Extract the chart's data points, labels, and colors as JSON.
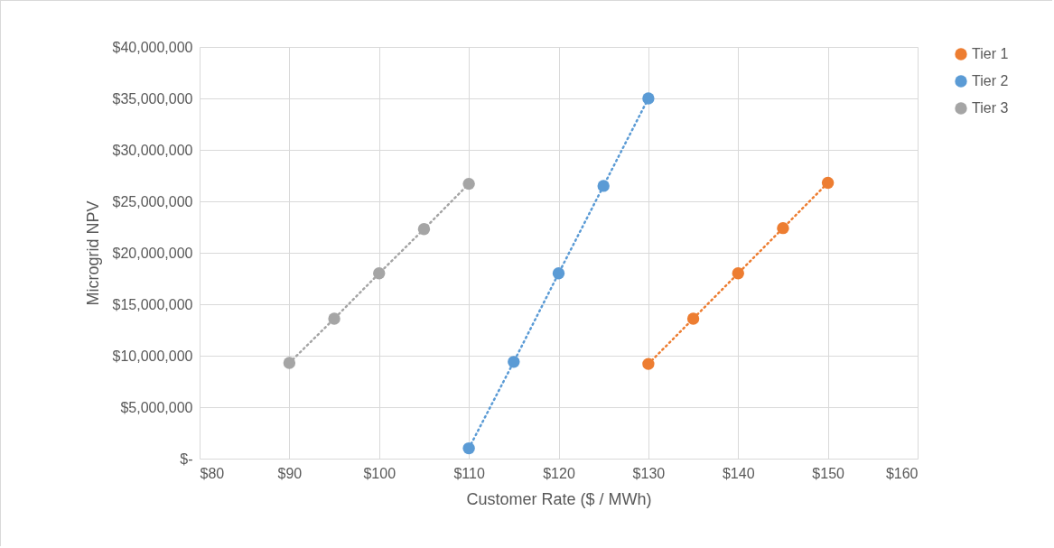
{
  "chart_data": {
    "type": "line",
    "xlabel": "Customer Rate ($ / MWh)",
    "ylabel": "Microgrid NPV",
    "xlim": [
      80,
      160
    ],
    "ylim": [
      0,
      40000000
    ],
    "xticks": [
      {
        "value": 80,
        "label": "$80"
      },
      {
        "value": 90,
        "label": "$90"
      },
      {
        "value": 100,
        "label": "$100"
      },
      {
        "value": 110,
        "label": "$110"
      },
      {
        "value": 120,
        "label": "$120"
      },
      {
        "value": 130,
        "label": "$130"
      },
      {
        "value": 140,
        "label": "$140"
      },
      {
        "value": 150,
        "label": "$150"
      },
      {
        "value": 160,
        "label": "$160"
      }
    ],
    "yticks": [
      {
        "value": 0,
        "label": "$-"
      },
      {
        "value": 5000000,
        "label": "$5,000,000"
      },
      {
        "value": 10000000,
        "label": "$10,000,000"
      },
      {
        "value": 15000000,
        "label": "$15,000,000"
      },
      {
        "value": 20000000,
        "label": "$20,000,000"
      },
      {
        "value": 25000000,
        "label": "$25,000,000"
      },
      {
        "value": 30000000,
        "label": "$30,000,000"
      },
      {
        "value": 35000000,
        "label": "$35,000,000"
      },
      {
        "value": 40000000,
        "label": "$40,000,000"
      }
    ],
    "series": [
      {
        "name": "Tier 1",
        "color": "#ed7d31",
        "x": [
          130,
          135,
          140,
          145,
          150
        ],
        "values": [
          9200000,
          13600000,
          18000000,
          22400000,
          26800000
        ]
      },
      {
        "name": "Tier 2",
        "color": "#5b9bd5",
        "x": [
          110,
          115,
          120,
          125,
          130
        ],
        "values": [
          1000000,
          9400000,
          18000000,
          26500000,
          35000000
        ]
      },
      {
        "name": "Tier 3",
        "color": "#a5a5a5",
        "x": [
          90,
          95,
          100,
          105,
          110
        ],
        "values": [
          9300000,
          13600000,
          18000000,
          22300000,
          26700000
        ]
      }
    ],
    "grid": true,
    "legend": "right",
    "marker": "circle",
    "line_style": "dotted"
  }
}
